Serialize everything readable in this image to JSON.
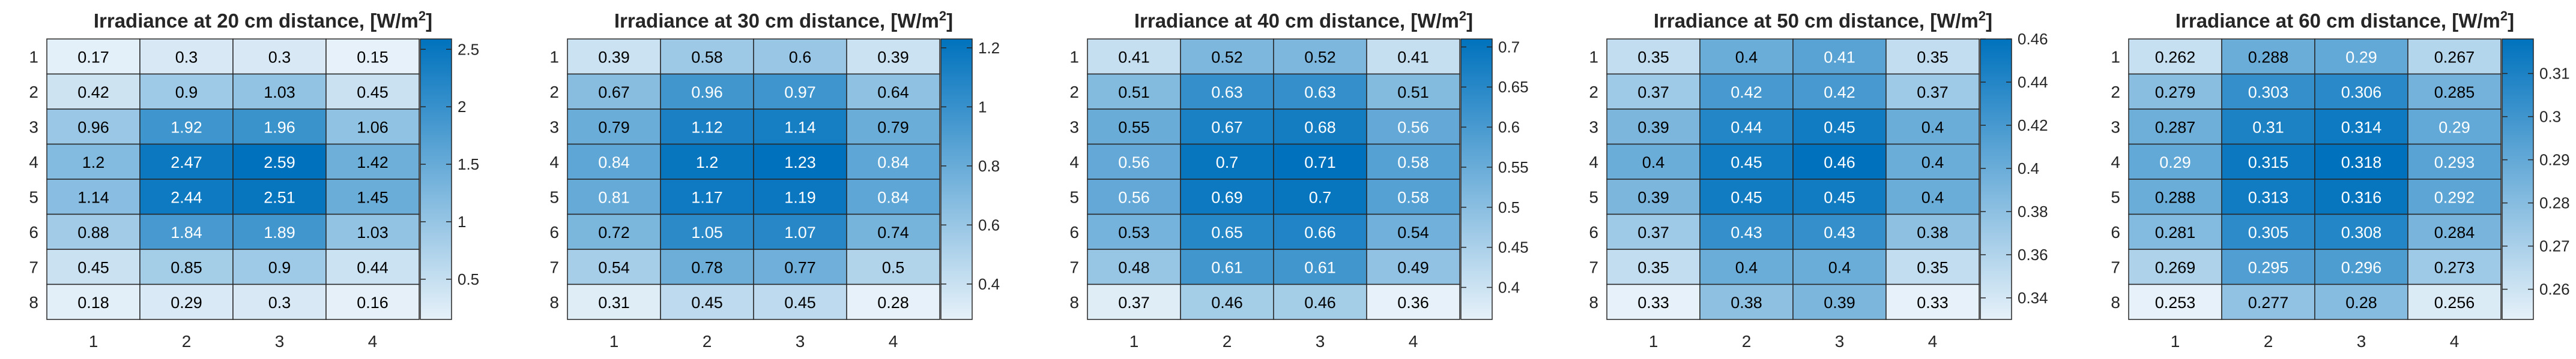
{
  "chart_data": [
    {
      "type": "heatmap",
      "title": "Irradiance at 20 cm distance, [W/m",
      "title_sup": "2",
      "title_end": "]",
      "x_categories": [
        "1",
        "2",
        "3",
        "4"
      ],
      "y_categories": [
        "1",
        "2",
        "3",
        "4",
        "5",
        "6",
        "7",
        "8"
      ],
      "values": [
        [
          0.17,
          0.3,
          0.3,
          0.15
        ],
        [
          0.42,
          0.9,
          1.03,
          0.45
        ],
        [
          0.96,
          1.92,
          1.96,
          1.06
        ],
        [
          1.2,
          2.47,
          2.59,
          1.42
        ],
        [
          1.14,
          2.44,
          2.51,
          1.45
        ],
        [
          0.88,
          1.84,
          1.89,
          1.03
        ],
        [
          0.45,
          0.85,
          0.9,
          0.44
        ],
        [
          0.18,
          0.29,
          0.3,
          0.16
        ]
      ],
      "labels": [
        [
          "0.17",
          "0.3",
          "0.3",
          "0.15"
        ],
        [
          "0.42",
          "0.9",
          "1.03",
          "0.45"
        ],
        [
          "0.96",
          "1.92",
          "1.96",
          "1.06"
        ],
        [
          "1.2",
          "2.47",
          "2.59",
          "1.42"
        ],
        [
          "1.14",
          "2.44",
          "2.51",
          "1.45"
        ],
        [
          "0.88",
          "1.84",
          "1.89",
          "1.03"
        ],
        [
          "0.45",
          "0.85",
          "0.9",
          "0.44"
        ],
        [
          "0.18",
          "0.29",
          "0.3",
          "0.16"
        ]
      ],
      "colorbar": {
        "range": [
          0.15,
          2.59
        ],
        "ticks": [
          0.5,
          1,
          1.5,
          2,
          2.5
        ],
        "tick_labels": [
          "0.5",
          "1",
          "1.5",
          "2",
          "2.5"
        ]
      },
      "colormap": [
        "#e6f1f9",
        "#0072bd"
      ]
    },
    {
      "type": "heatmap",
      "title": "Irradiance at 30 cm distance, [W/m",
      "title_sup": "2",
      "title_end": "]",
      "x_categories": [
        "1",
        "2",
        "3",
        "4"
      ],
      "y_categories": [
        "1",
        "2",
        "3",
        "4",
        "5",
        "6",
        "7",
        "8"
      ],
      "values": [
        [
          0.39,
          0.58,
          0.6,
          0.39
        ],
        [
          0.67,
          0.96,
          0.97,
          0.64
        ],
        [
          0.79,
          1.12,
          1.14,
          0.79
        ],
        [
          0.84,
          1.2,
          1.23,
          0.84
        ],
        [
          0.81,
          1.17,
          1.19,
          0.84
        ],
        [
          0.72,
          1.05,
          1.07,
          0.74
        ],
        [
          0.54,
          0.78,
          0.77,
          0.5
        ],
        [
          0.31,
          0.45,
          0.45,
          0.28
        ]
      ],
      "labels": [
        [
          "0.39",
          "0.58",
          "0.6",
          "0.39"
        ],
        [
          "0.67",
          "0.96",
          "0.97",
          "0.64"
        ],
        [
          "0.79",
          "1.12",
          "1.14",
          "0.79"
        ],
        [
          "0.84",
          "1.2",
          "1.23",
          "0.84"
        ],
        [
          "0.81",
          "1.17",
          "1.19",
          "0.84"
        ],
        [
          "0.72",
          "1.05",
          "1.07",
          "0.74"
        ],
        [
          "0.54",
          "0.78",
          "0.77",
          "0.5"
        ],
        [
          "0.31",
          "0.45",
          "0.45",
          "0.28"
        ]
      ],
      "colorbar": {
        "range": [
          0.28,
          1.23
        ],
        "ticks": [
          0.4,
          0.6,
          0.8,
          1,
          1.2
        ],
        "tick_labels": [
          "0.4",
          "0.6",
          "0.8",
          "1",
          "1.2"
        ]
      },
      "colormap": [
        "#e6f1f9",
        "#0072bd"
      ]
    },
    {
      "type": "heatmap",
      "title": "Irradiance at 40 cm distance, [W/m",
      "title_sup": "2",
      "title_end": "]",
      "x_categories": [
        "1",
        "2",
        "3",
        "4"
      ],
      "y_categories": [
        "1",
        "2",
        "3",
        "4",
        "5",
        "6",
        "7",
        "8"
      ],
      "values": [
        [
          0.41,
          0.52,
          0.52,
          0.41
        ],
        [
          0.51,
          0.63,
          0.63,
          0.51
        ],
        [
          0.55,
          0.67,
          0.68,
          0.56
        ],
        [
          0.56,
          0.7,
          0.71,
          0.58
        ],
        [
          0.56,
          0.69,
          0.7,
          0.58
        ],
        [
          0.53,
          0.65,
          0.66,
          0.54
        ],
        [
          0.48,
          0.61,
          0.61,
          0.49
        ],
        [
          0.37,
          0.46,
          0.46,
          0.36
        ]
      ],
      "labels": [
        [
          "0.41",
          "0.52",
          "0.52",
          "0.41"
        ],
        [
          "0.51",
          "0.63",
          "0.63",
          "0.51"
        ],
        [
          "0.55",
          "0.67",
          "0.68",
          "0.56"
        ],
        [
          "0.56",
          "0.7",
          "0.71",
          "0.58"
        ],
        [
          "0.56",
          "0.69",
          "0.7",
          "0.58"
        ],
        [
          "0.53",
          "0.65",
          "0.66",
          "0.54"
        ],
        [
          "0.48",
          "0.61",
          "0.61",
          "0.49"
        ],
        [
          "0.37",
          "0.46",
          "0.46",
          "0.36"
        ]
      ],
      "colorbar": {
        "range": [
          0.36,
          0.71
        ],
        "ticks": [
          0.4,
          0.45,
          0.5,
          0.55,
          0.6,
          0.65,
          0.7
        ],
        "tick_labels": [
          "0.4",
          "0.45",
          "0.5",
          "0.55",
          "0.6",
          "0.65",
          "0.7"
        ]
      },
      "colormap": [
        "#e6f1f9",
        "#0072bd"
      ]
    },
    {
      "type": "heatmap",
      "title": "Irradiance at 50 cm distance, [W/m",
      "title_sup": "2",
      "title_end": "]",
      "x_categories": [
        "1",
        "2",
        "3",
        "4"
      ],
      "y_categories": [
        "1",
        "2",
        "3",
        "4",
        "5",
        "6",
        "7",
        "8"
      ],
      "values": [
        [
          0.35,
          0.4,
          0.41,
          0.35
        ],
        [
          0.37,
          0.42,
          0.42,
          0.37
        ],
        [
          0.39,
          0.44,
          0.45,
          0.4
        ],
        [
          0.4,
          0.45,
          0.46,
          0.4
        ],
        [
          0.39,
          0.45,
          0.45,
          0.4
        ],
        [
          0.37,
          0.43,
          0.43,
          0.38
        ],
        [
          0.35,
          0.4,
          0.4,
          0.35
        ],
        [
          0.33,
          0.38,
          0.39,
          0.33
        ]
      ],
      "labels": [
        [
          "0.35",
          "0.4",
          "0.41",
          "0.35"
        ],
        [
          "0.37",
          "0.42",
          "0.42",
          "0.37"
        ],
        [
          "0.39",
          "0.44",
          "0.45",
          "0.4"
        ],
        [
          "0.4",
          "0.45",
          "0.46",
          "0.4"
        ],
        [
          "0.39",
          "0.45",
          "0.45",
          "0.4"
        ],
        [
          "0.37",
          "0.43",
          "0.43",
          "0.38"
        ],
        [
          "0.35",
          "0.4",
          "0.4",
          "0.35"
        ],
        [
          "0.33",
          "0.38",
          "0.39",
          "0.33"
        ]
      ],
      "colorbar": {
        "range": [
          0.33,
          0.46
        ],
        "ticks": [
          0.34,
          0.36,
          0.38,
          0.4,
          0.42,
          0.44,
          0.46
        ],
        "tick_labels": [
          "0.34",
          "0.36",
          "0.38",
          "0.4",
          "0.42",
          "0.44",
          "0.46"
        ]
      },
      "colormap": [
        "#e6f1f9",
        "#0072bd"
      ]
    },
    {
      "type": "heatmap",
      "title": "Irradiance at 60 cm distance, [W/m",
      "title_sup": "2",
      "title_end": "]",
      "x_categories": [
        "1",
        "2",
        "3",
        "4"
      ],
      "y_categories": [
        "1",
        "2",
        "3",
        "4",
        "5",
        "6",
        "7",
        "8"
      ],
      "values": [
        [
          0.262,
          0.288,
          0.29,
          0.267
        ],
        [
          0.279,
          0.303,
          0.306,
          0.285
        ],
        [
          0.287,
          0.31,
          0.314,
          0.29
        ],
        [
          0.29,
          0.315,
          0.318,
          0.293
        ],
        [
          0.288,
          0.313,
          0.316,
          0.292
        ],
        [
          0.281,
          0.305,
          0.308,
          0.284
        ],
        [
          0.269,
          0.295,
          0.296,
          0.273
        ],
        [
          0.253,
          0.277,
          0.28,
          0.256
        ]
      ],
      "labels": [
        [
          "0.262",
          "0.288",
          "0.29",
          "0.267"
        ],
        [
          "0.279",
          "0.303",
          "0.306",
          "0.285"
        ],
        [
          "0.287",
          "0.31",
          "0.314",
          "0.29"
        ],
        [
          "0.29",
          "0.315",
          "0.318",
          "0.293"
        ],
        [
          "0.288",
          "0.313",
          "0.316",
          "0.292"
        ],
        [
          "0.281",
          "0.305",
          "0.308",
          "0.284"
        ],
        [
          "0.269",
          "0.295",
          "0.296",
          "0.273"
        ],
        [
          "0.253",
          "0.277",
          "0.28",
          "0.256"
        ]
      ],
      "colorbar": {
        "range": [
          0.253,
          0.318
        ],
        "ticks": [
          0.26,
          0.27,
          0.28,
          0.29,
          0.3,
          0.31
        ],
        "tick_labels": [
          "0.26",
          "0.27",
          "0.28",
          "0.29",
          "0.3",
          "0.31"
        ]
      },
      "colormap": [
        "#e6f1f9",
        "#0072bd"
      ]
    }
  ]
}
